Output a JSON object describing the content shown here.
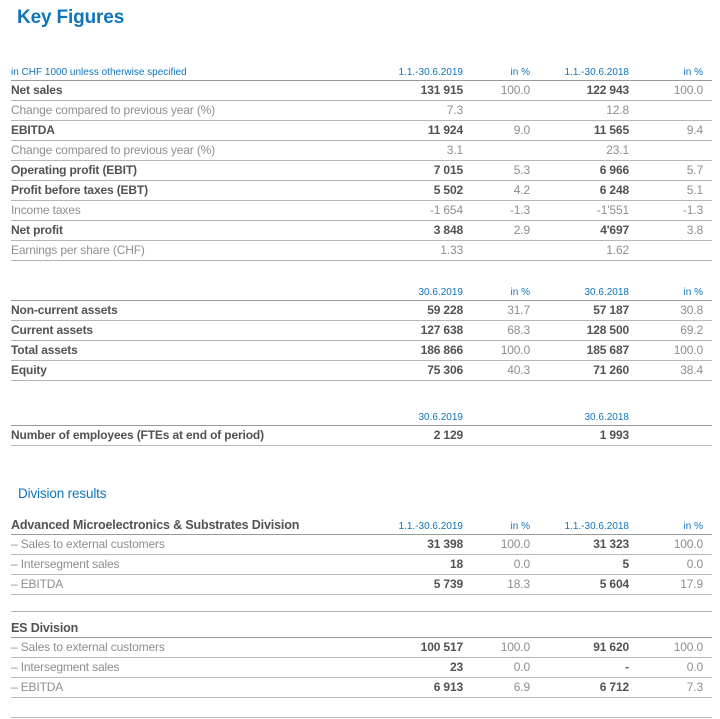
{
  "title": "Key Figures",
  "colors": {
    "accent_blue": "#0f74bc",
    "text_dark": "#525255",
    "text_muted": "#8e8e90",
    "rule_gray": "#b7b7b8",
    "header_rule_gray": "#999a9b",
    "background": "#ffffff"
  },
  "sections": [
    {
      "type": "table",
      "name": "table-income-statement",
      "head": {
        "variant": "note",
        "label": "in CHF 1000 unless otherwise specified",
        "cols": [
          "1.1.-30.6.2019",
          "in %",
          "1.1.-30.6.2018",
          "in %"
        ]
      },
      "rows": [
        {
          "style": "bold",
          "label": "Net sales",
          "cells": [
            "131 915",
            "100.0",
            "122 943",
            "100.0"
          ]
        },
        {
          "style": "muted",
          "label": "Change compared to previous year (%)",
          "cells": [
            "7.3",
            "",
            "12.8",
            ""
          ]
        },
        {
          "style": "bold",
          "label": "EBITDA",
          "cells": [
            "11 924",
            "9.0",
            "11 565",
            "9.4"
          ]
        },
        {
          "style": "muted",
          "label": "Change compared to previous year (%)",
          "cells": [
            "3.1",
            "",
            "23.1",
            ""
          ]
        },
        {
          "style": "bold",
          "label": "Operating profit (EBIT)",
          "cells": [
            "7 015",
            "5.3",
            "6 966",
            "5.7"
          ]
        },
        {
          "style": "bold",
          "label": "Profit before taxes (EBT)",
          "cells": [
            "5 502",
            "4.2",
            "6 248",
            "5.1"
          ]
        },
        {
          "style": "muted",
          "label": "Income taxes",
          "cells": [
            "-1 654",
            "-1.3",
            "-1'551",
            "-1.3"
          ]
        },
        {
          "style": "bold",
          "label": "Net profit",
          "cells": [
            "3 848",
            "2.9",
            "4'697",
            "3.8"
          ]
        },
        {
          "style": "muted",
          "label": "Earnings per share (CHF)",
          "cells": [
            "1.33",
            "",
            "1.62",
            ""
          ]
        }
      ],
      "spacer": false
    },
    {
      "type": "table",
      "name": "table-balance-sheet",
      "head": {
        "variant": "none",
        "label": "",
        "cols": [
          "30.6.2019",
          "in %",
          "30.6.2018",
          "in %"
        ]
      },
      "rows": [
        {
          "style": "bold",
          "label": "Non-current assets",
          "cells": [
            "59 228",
            "31.7",
            "57 187",
            "30.8"
          ]
        },
        {
          "style": "bold",
          "label": "Current assets",
          "cells": [
            "127 638",
            "68.3",
            "128 500",
            "69.2"
          ]
        },
        {
          "style": "bold",
          "label": "Total assets",
          "cells": [
            "186 866",
            "100.0",
            "185 687",
            "100.0"
          ]
        },
        {
          "style": "bold",
          "label": "Equity",
          "cells": [
            "75 306",
            "40.3",
            "71 260",
            "38.4"
          ]
        }
      ],
      "spacer": false
    },
    {
      "type": "table",
      "name": "table-employees",
      "head": {
        "variant": "none",
        "label": "",
        "cols": [
          "30.6.2019",
          "",
          "30.6.2018",
          ""
        ]
      },
      "rows": [
        {
          "style": "bold",
          "label": "Number of employees (FTEs at end of period)",
          "cells": [
            "2 129",
            "",
            "1 993",
            ""
          ]
        }
      ],
      "spacer": false
    },
    {
      "type": "heading",
      "name": "heading-division-results",
      "text": "Division results"
    },
    {
      "type": "table",
      "name": "table-ams-division",
      "head": {
        "variant": "division",
        "label": "Advanced Microelectronics & Substrates Division",
        "cols": [
          "1.1.-30.6.2019",
          "in %",
          "1.1.-30.6.2018",
          "in %"
        ]
      },
      "rows": [
        {
          "style": "division",
          "label": "– Sales to external customers",
          "cells": [
            "31 398",
            "100.0",
            "31 323",
            "100.0"
          ]
        },
        {
          "style": "division",
          "label": "– Intersegment sales",
          "cells": [
            "18",
            "0.0",
            "5",
            "0.0"
          ]
        },
        {
          "style": "division",
          "label": "– EBITDA",
          "cells": [
            "5 739",
            "18.3",
            "5 604",
            "17.9"
          ]
        }
      ],
      "spacer": true
    },
    {
      "type": "table",
      "name": "table-es-division",
      "head": {
        "variant": "division",
        "label": "ES Division",
        "cols": [
          "",
          "",
          "",
          ""
        ]
      },
      "rows": [
        {
          "style": "division",
          "label": "– Sales to external customers",
          "cells": [
            "100 517",
            "100.0",
            "91 620",
            "100.0"
          ]
        },
        {
          "style": "division",
          "label": "– Intersegment sales",
          "cells": [
            "23",
            "0.0",
            "-",
            "0.0"
          ]
        },
        {
          "style": "division",
          "label": "– EBITDA",
          "cells": [
            "6 913",
            "6.9",
            "6 712",
            "7.3"
          ]
        }
      ],
      "spacer": true
    }
  ]
}
